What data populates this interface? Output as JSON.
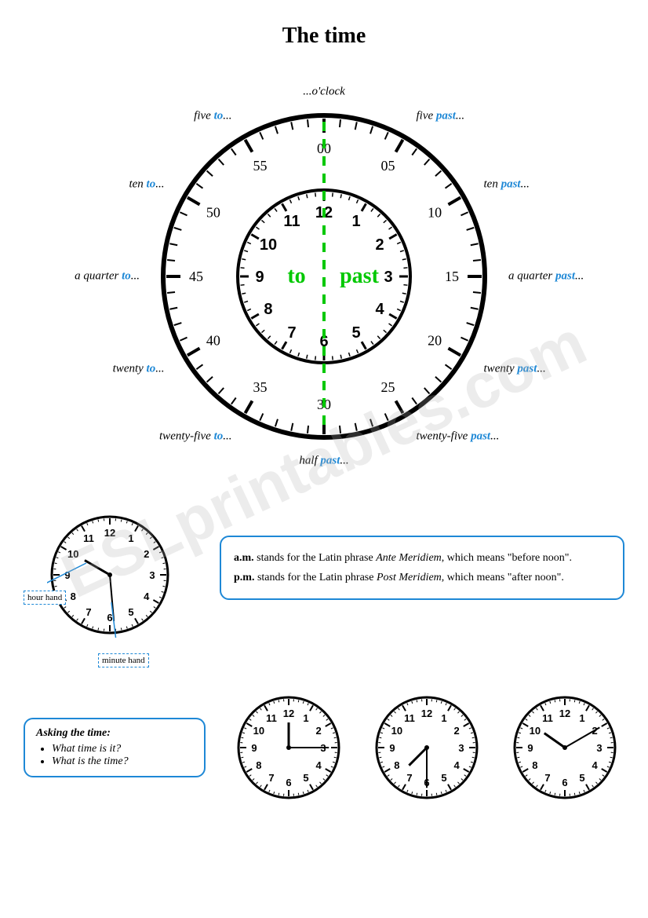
{
  "title": "The time",
  "mainClock": {
    "outerRadius": 205,
    "innerRadius": 110,
    "minuteNumbers": [
      "00",
      "05",
      "10",
      "15",
      "20",
      "25",
      "30",
      "35",
      "40",
      "45",
      "50",
      "55"
    ],
    "hourNumbers": [
      "12",
      "1",
      "2",
      "3",
      "4",
      "5",
      "6",
      "7",
      "8",
      "9",
      "10",
      "11"
    ],
    "dividerColor": "#00c800",
    "toLabel": "to",
    "pastLabel": "past",
    "topLabel": "...o'clock",
    "bottomLabel": "half past...",
    "outerLabels": [
      {
        "angle": 0,
        "text": "...o'clock",
        "hl": null
      },
      {
        "angle": 30,
        "pre": "five ",
        "hl": "past",
        "post": "..."
      },
      {
        "angle": 60,
        "pre": "ten ",
        "hl": "past",
        "post": "..."
      },
      {
        "angle": 90,
        "pre": "a quarter ",
        "hl": "past",
        "post": "..."
      },
      {
        "angle": 120,
        "pre": "twenty ",
        "hl": "past",
        "post": "..."
      },
      {
        "angle": 150,
        "pre": "twenty-five ",
        "hl": "past",
        "post": "..."
      },
      {
        "angle": 180,
        "pre": "half ",
        "hl": "past",
        "post": "..."
      },
      {
        "angle": 210,
        "pre": "twenty-five ",
        "hl": "to",
        "post": "..."
      },
      {
        "angle": 240,
        "pre": "twenty ",
        "hl": "to",
        "post": "..."
      },
      {
        "angle": 270,
        "pre": "a quarter ",
        "hl": "to",
        "post": "..."
      },
      {
        "angle": 300,
        "pre": "ten ",
        "hl": "to",
        "post": "..."
      },
      {
        "angle": 330,
        "pre": "five ",
        "hl": "to",
        "post": "..."
      }
    ]
  },
  "handsClock": {
    "hourHandLabel": "hour hand",
    "minuteHandLabel": "minute hand",
    "hourAngle": -60,
    "minuteAngle": 175
  },
  "amPmBox": {
    "line1_bold": "a.m.",
    "line1_rest": " stands for the Latin phrase ",
    "line1_italic": "Ante Meridiem",
    "line1_end": ", which means \"before noon\".",
    "line2_bold": "p.m.",
    "line2_rest": " stands for the Latin phrase ",
    "line2_italic": "Post Meridiem",
    "line2_end": ", which means \"after noon\"."
  },
  "askingBox": {
    "header": "Asking the time:",
    "q1": "What time is it?",
    "q2": "What is the time?"
  },
  "smallClocks": [
    {
      "hourAngle": 0,
      "minuteAngle": 90
    },
    {
      "hourAngle": 225,
      "minuteAngle": 180
    },
    {
      "hourAngle": -55,
      "minuteAngle": 60
    }
  ],
  "watermark": "ESLprintables.com",
  "colors": {
    "accent": "#1e88d6",
    "green": "#00c800",
    "black": "#000000"
  }
}
